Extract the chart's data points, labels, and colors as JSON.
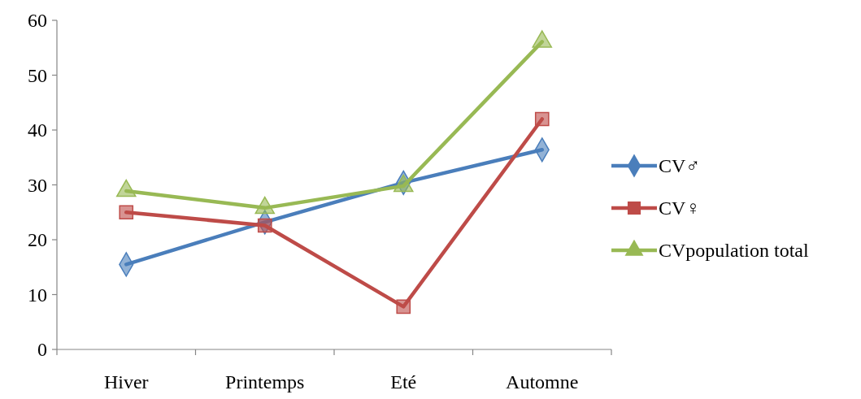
{
  "chart_data": {
    "type": "line",
    "categories": [
      "Hiver",
      "Printemps",
      "Eté",
      "Automne"
    ],
    "series": [
      {
        "name": "CV♂",
        "color": "#4a7ebb",
        "marker": "diamond",
        "values": [
          15.5,
          23.2,
          30.4,
          36.4
        ]
      },
      {
        "name": "CV♀",
        "color": "#be4b48",
        "marker": "square",
        "values": [
          25.0,
          22.6,
          7.8,
          42.0
        ]
      },
      {
        "name": "CVpopulation total",
        "color": "#98b954",
        "marker": "triangle",
        "values": [
          28.9,
          25.8,
          29.8,
          56.1
        ]
      }
    ],
    "ylim": [
      0,
      60
    ],
    "yticks": [
      0,
      10,
      20,
      30,
      40,
      50,
      60
    ],
    "grid": false,
    "legend": "right",
    "line_style": "solid"
  }
}
